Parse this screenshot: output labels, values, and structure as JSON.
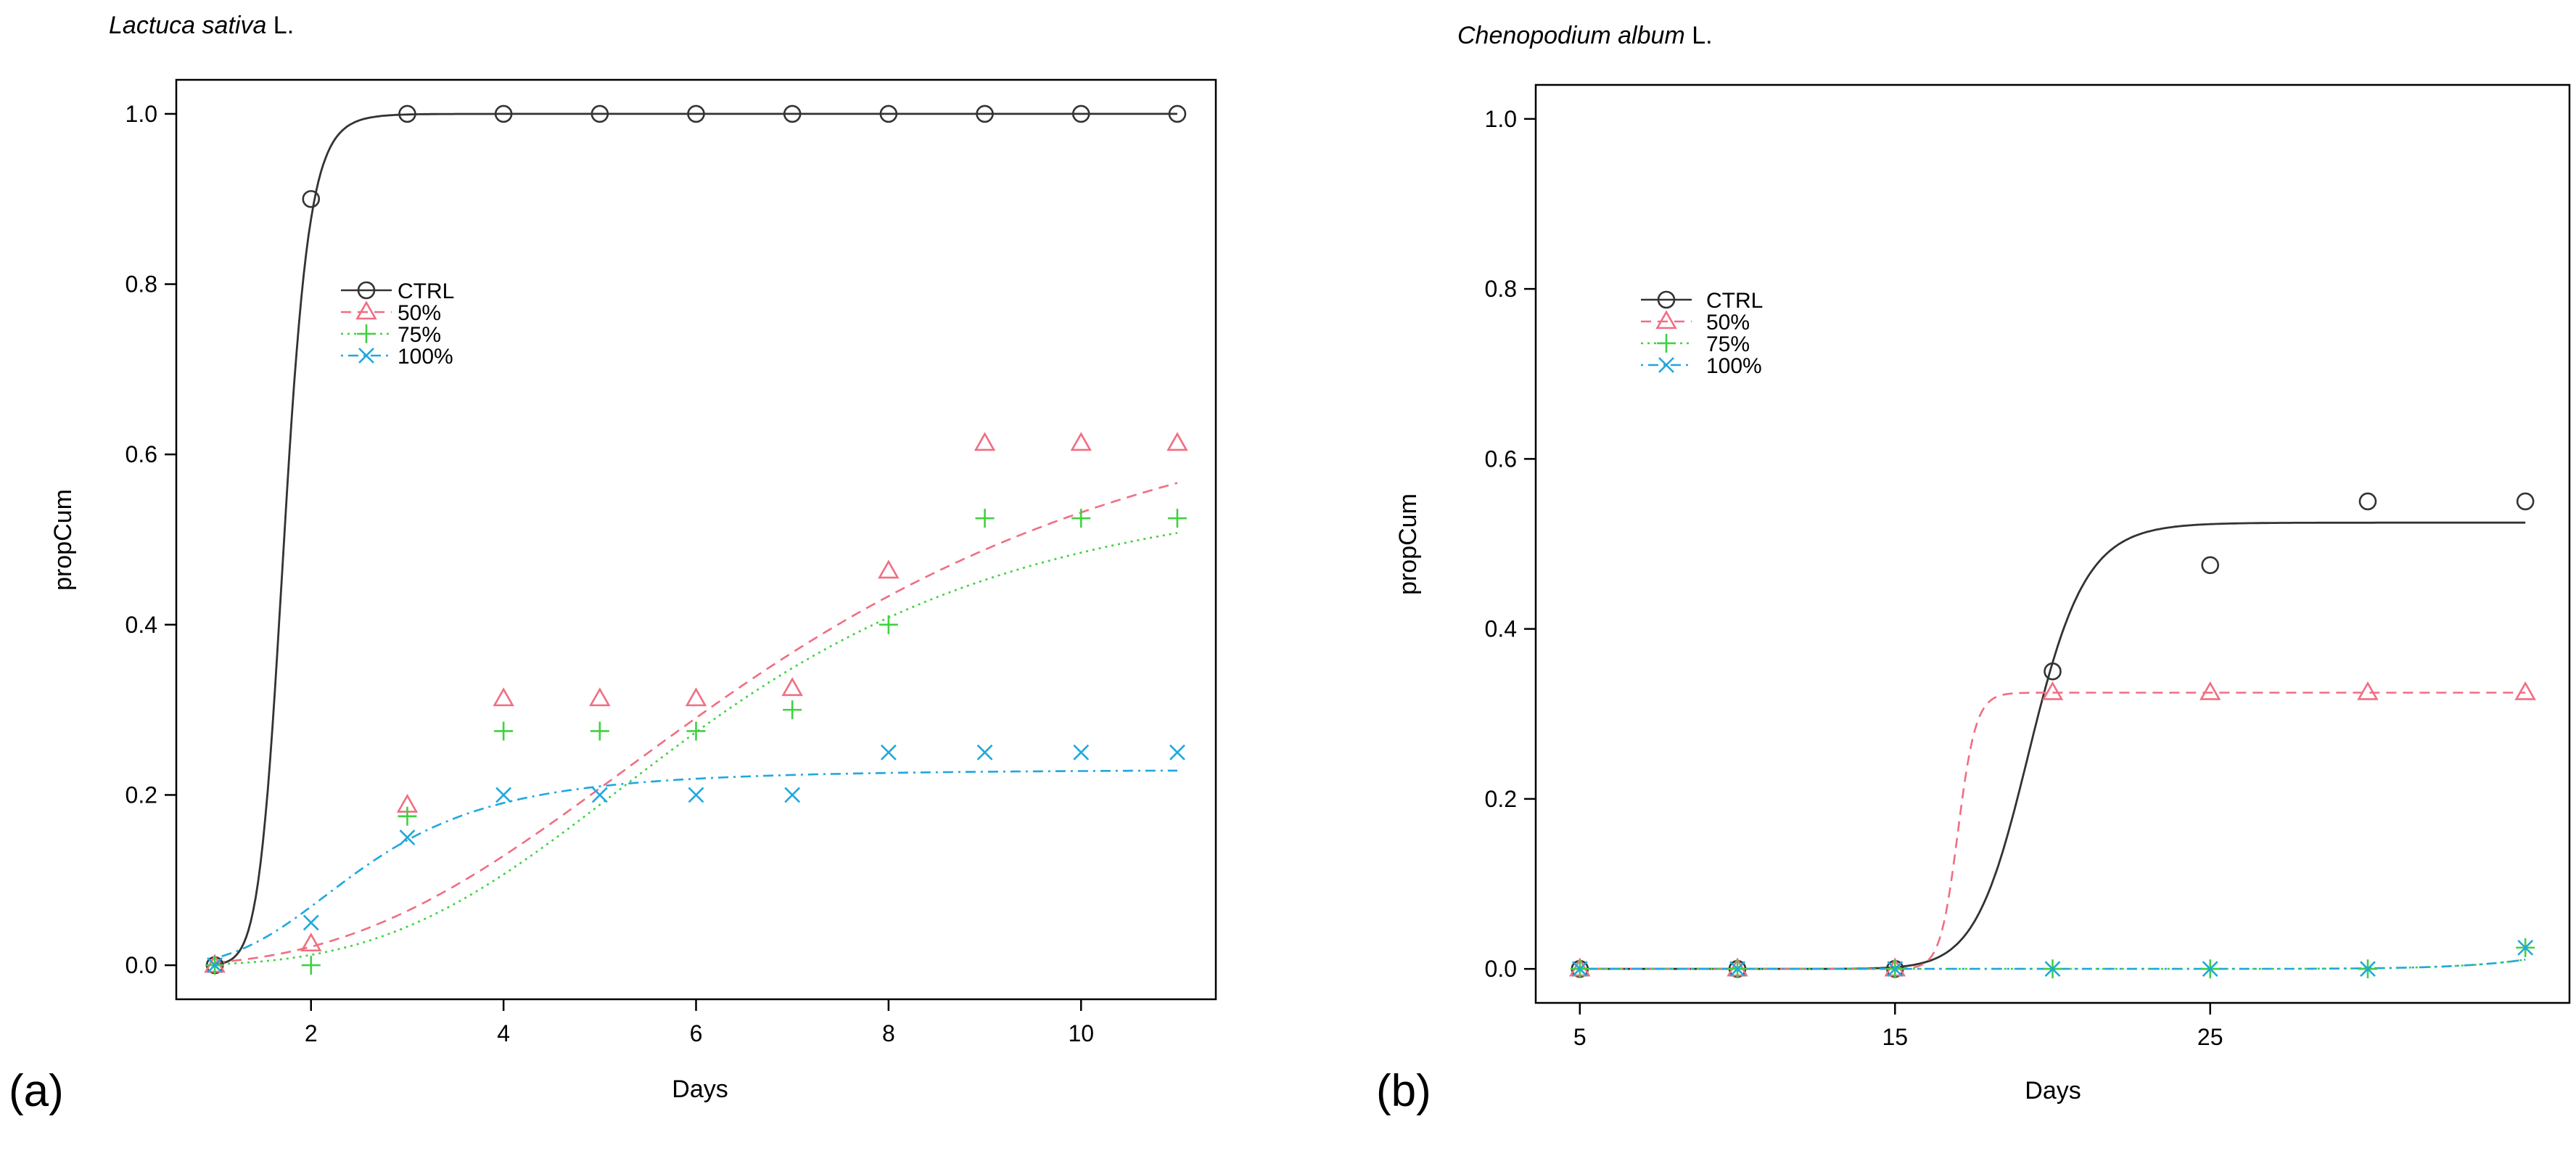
{
  "figure": {
    "panel_labels": [
      "(a)",
      "(b)"
    ]
  },
  "colors": {
    "CTRL": "#333333",
    "50%": "#f06e82",
    "75%": "#3ed23e",
    "100%": "#1fa8df",
    "axis": "#000000"
  },
  "chart_data": [
    {
      "type": "scatter",
      "panel": "(a)",
      "title_italic": "Lactuca sativa",
      "title_suffix": " L.",
      "xlabel": "Days",
      "ylabel": "propCum",
      "xlim": [
        0.6,
        11.4
      ],
      "ylim": [
        -0.04,
        1.04
      ],
      "xticks": [
        2,
        4,
        6,
        8,
        10
      ],
      "yticks": [
        0.0,
        0.2,
        0.4,
        0.6,
        0.8,
        1.0
      ],
      "ytick_labels": [
        "0.0",
        "0.2",
        "0.4",
        "0.6",
        "0.8",
        "1.0"
      ],
      "legend_position": "upper-left",
      "series": [
        {
          "name": "CTRL",
          "marker": "circle",
          "line": "solid",
          "x": [
            1,
            2,
            3,
            4,
            5,
            6,
            7,
            8,
            9,
            10,
            11
          ],
          "y": [
            0.0,
            0.9,
            1.0,
            1.0,
            1.0,
            1.0,
            1.0,
            1.0,
            1.0,
            1.0,
            1.0
          ],
          "fit": {
            "d": 1.0,
            "e": 1.72,
            "b": 13
          }
        },
        {
          "name": "50%",
          "marker": "triangle",
          "line": "dashed",
          "x": [
            1,
            2,
            3,
            4,
            5,
            6,
            7,
            8,
            9,
            10,
            11
          ],
          "y": [
            0.0,
            0.025,
            0.188,
            0.313,
            0.313,
            0.313,
            0.325,
            0.463,
            0.613,
            0.613,
            0.613
          ],
          "fit": {
            "d": 0.72,
            "e": 6.9,
            "b": 2.8
          }
        },
        {
          "name": "75%",
          "marker": "plus",
          "line": "dotted",
          "x": [
            1,
            2,
            3,
            4,
            5,
            6,
            7,
            8,
            9,
            10,
            11
          ],
          "y": [
            0.0,
            0.0,
            0.175,
            0.275,
            0.275,
            0.275,
            0.3,
            0.4,
            0.525,
            0.525,
            0.525
          ],
          "fit": {
            "d": 0.58,
            "e": 6.2,
            "b": 3.4
          }
        },
        {
          "name": "100%",
          "marker": "x",
          "line": "dotdash",
          "x": [
            1,
            2,
            3,
            4,
            5,
            6,
            7,
            8,
            9,
            10,
            11
          ],
          "y": [
            0.0,
            0.05,
            0.15,
            0.2,
            0.2,
            0.2,
            0.2,
            0.25,
            0.25,
            0.25,
            0.25
          ],
          "fit": {
            "d": 0.23,
            "e": 2.55,
            "b": 3.5
          }
        }
      ]
    },
    {
      "type": "scatter",
      "panel": "(b)",
      "title_italic": "Chenopodium album",
      "title_suffix": " L.",
      "xlabel": "Days",
      "ylabel": "propCum",
      "xlim": [
        3.6,
        36.4
      ],
      "ylim": [
        -0.04,
        1.04
      ],
      "xticks": [
        5,
        15,
        25
      ],
      "yticks": [
        0.0,
        0.2,
        0.4,
        0.6,
        0.8,
        1.0
      ],
      "ytick_labels": [
        "0.0",
        "0.2",
        "0.4",
        "0.6",
        "0.8",
        "1.0"
      ],
      "legend_position": "upper-left",
      "series": [
        {
          "name": "CTRL",
          "marker": "circle",
          "line": "solid",
          "x": [
            5,
            10,
            15,
            20,
            25,
            30,
            35
          ],
          "y": [
            0.0,
            0.0,
            0.0,
            0.35,
            0.475,
            0.55,
            0.55
          ],
          "fit": {
            "d": 0.525,
            "e": 19.3,
            "b": 22
          }
        },
        {
          "name": "50%",
          "marker": "triangle",
          "line": "dashed",
          "x": [
            5,
            10,
            15,
            20,
            25,
            30,
            35
          ],
          "y": [
            0.0,
            0.0,
            0.0,
            0.325,
            0.325,
            0.325,
            0.325
          ],
          "fit": {
            "d": 0.325,
            "e": 17.0,
            "b": 60
          }
        },
        {
          "name": "75%",
          "marker": "plus",
          "line": "dotted",
          "x": [
            5,
            10,
            15,
            20,
            25,
            30,
            35
          ],
          "y": [
            0.0,
            0.0,
            0.0,
            0.0,
            0.0,
            0.0,
            0.025
          ],
          "fit": {
            "d": 0.2,
            "e": 41.0,
            "b": 18
          }
        },
        {
          "name": "100%",
          "marker": "x",
          "line": "dotdash",
          "x": [
            5,
            10,
            15,
            20,
            25,
            30,
            35
          ],
          "y": [
            0.0,
            0.0,
            0.0,
            0.0,
            0.0,
            0.0,
            0.025
          ],
          "fit": {
            "d": 0.2,
            "e": 41.0,
            "b": 18
          }
        }
      ]
    }
  ]
}
